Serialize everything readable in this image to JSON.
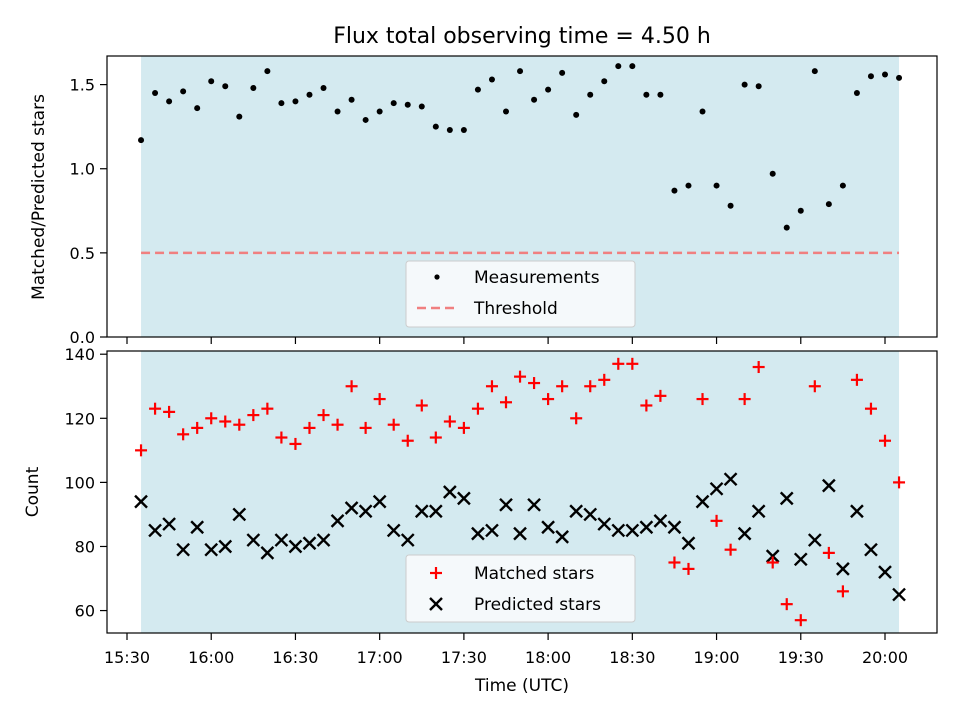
{
  "chart_data": {
    "type": "scatter",
    "title": "Flux total observing time = 4.50 h",
    "xlabel": "Time (UTC)",
    "x_ticks": [
      "15:30",
      "16:00",
      "16:30",
      "17:00",
      "17:30",
      "18:00",
      "18:30",
      "19:00",
      "19:30",
      "20:00"
    ],
    "observing_window": [
      "15:35",
      "20:05"
    ],
    "shade_color": "#d4eaf0",
    "x": [
      "15:35",
      "15:40",
      "15:45",
      "15:50",
      "15:55",
      "16:00",
      "16:05",
      "16:10",
      "16:15",
      "16:20",
      "16:25",
      "16:30",
      "16:35",
      "16:40",
      "16:45",
      "16:50",
      "16:55",
      "17:00",
      "17:05",
      "17:10",
      "17:15",
      "17:20",
      "17:25",
      "17:30",
      "17:35",
      "17:40",
      "17:45",
      "17:50",
      "17:55",
      "18:00",
      "18:05",
      "18:10",
      "18:15",
      "18:20",
      "18:25",
      "18:30",
      "18:35",
      "18:40",
      "18:45",
      "18:50",
      "18:55",
      "19:00",
      "19:05",
      "19:10",
      "19:15",
      "19:20",
      "19:25",
      "19:30",
      "19:35",
      "19:40",
      "19:45",
      "19:50",
      "19:55",
      "20:00",
      "20:05"
    ],
    "panels": [
      {
        "ylabel": "Matched/Predicted stars",
        "ylim": [
          0,
          1.67
        ],
        "yticks": [
          "0.0",
          "0.5",
          "1.0",
          "1.5"
        ],
        "threshold": 0.5,
        "legend_placement": "lower-center",
        "series": [
          {
            "name": "Measurements",
            "marker": "dot",
            "color": "#000000",
            "values": [
              1.17,
              1.45,
              1.4,
              1.46,
              1.36,
              1.52,
              1.49,
              1.31,
              1.48,
              1.58,
              1.39,
              1.4,
              1.44,
              1.48,
              1.34,
              1.41,
              1.29,
              1.34,
              1.39,
              1.38,
              1.37,
              1.25,
              1.23,
              1.23,
              1.47,
              1.53,
              1.34,
              1.58,
              1.41,
              1.47,
              1.57,
              1.32,
              1.44,
              1.52,
              1.61,
              1.61,
              1.44,
              1.44,
              0.87,
              0.9,
              1.34,
              0.9,
              0.78,
              1.5,
              1.49,
              0.97,
              0.65,
              0.75,
              1.58,
              0.79,
              0.9,
              1.45,
              1.55,
              1.56,
              1.54
            ]
          },
          {
            "name": "Threshold",
            "marker": "dashed-line",
            "color": "#f08080"
          }
        ]
      },
      {
        "ylabel": "Count",
        "ylim": [
          53,
          141
        ],
        "yticks": [
          "60",
          "80",
          "100",
          "120",
          "140"
        ],
        "legend_placement": "lower-center",
        "series": [
          {
            "name": "Matched stars",
            "marker": "plus",
            "color": "#ff0000",
            "values": [
              110,
              123,
              122,
              115,
              117,
              120,
              119,
              118,
              121,
              123,
              114,
              112,
              117,
              121,
              118,
              130,
              117,
              126,
              118,
              113,
              124,
              114,
              119,
              117,
              123,
              130,
              125,
              133,
              131,
              126,
              130,
              120,
              130,
              132,
              137,
              137,
              124,
              127,
              75,
              73,
              126,
              88,
              79,
              126,
              136,
              75,
              62,
              57,
              130,
              78,
              66,
              132,
              123,
              113,
              100
            ]
          },
          {
            "name": "Predicted stars",
            "marker": "x",
            "color": "#000000",
            "values": [
              94,
              85,
              87,
              79,
              86,
              79,
              80,
              90,
              82,
              78,
              82,
              80,
              81,
              82,
              88,
              92,
              91,
              94,
              85,
              82,
              91,
              91,
              97,
              95,
              84,
              85,
              93,
              84,
              93,
              86,
              83,
              91,
              90,
              87,
              85,
              85,
              86,
              88,
              86,
              81,
              94,
              98,
              101,
              84,
              91,
              77,
              95,
              76,
              82,
              99,
              73,
              91,
              79,
              72,
              65
            ]
          }
        ]
      }
    ]
  }
}
